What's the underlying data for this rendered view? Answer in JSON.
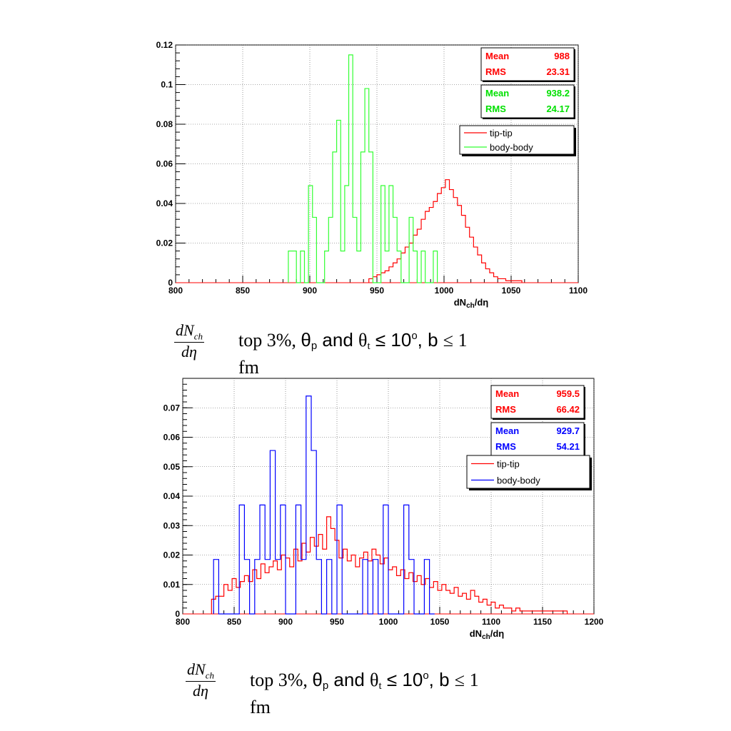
{
  "chart_data": [
    {
      "type": "histogram",
      "xlabel_main": "dN",
      "xlabel_sub": "ch",
      "xlabel_tail": "/dη",
      "xlim": [
        800,
        1100
      ],
      "ylim": [
        0,
        0.12
      ],
      "xticks": [
        "800",
        "850",
        "900",
        "950",
        "1000",
        "1050",
        "1100"
      ],
      "yticks": [
        "0",
        "0.02",
        "0.04",
        "0.06",
        "0.08",
        "0.1",
        "0.12"
      ],
      "grid": true,
      "stats": [
        {
          "color": "#ff0000",
          "mean_label": "Mean",
          "mean": "988",
          "rms_label": "RMS",
          "rms": "23.31"
        },
        {
          "color": "#00e000",
          "mean_label": "Mean",
          "mean": "938.2",
          "rms_label": "RMS",
          "rms": "24.17"
        }
      ],
      "legend": [
        {
          "name": "tip-tip",
          "color": "#ff0000"
        },
        {
          "name": "body-body",
          "color": "#33ff33"
        }
      ],
      "series": [
        {
          "name": "tip-tip",
          "color": "#ff0000",
          "binwidth": 3,
          "bins": [
            [
              944,
              0.002
            ],
            [
              947,
              0.003
            ],
            [
              950,
              0.004
            ],
            [
              953,
              0.005
            ],
            [
              956,
              0.006
            ],
            [
              959,
              0.008
            ],
            [
              962,
              0.01
            ],
            [
              965,
              0.012
            ],
            [
              968,
              0.015
            ],
            [
              971,
              0.018
            ],
            [
              974,
              0.02
            ],
            [
              977,
              0.024
            ],
            [
              980,
              0.027
            ],
            [
              983,
              0.032
            ],
            [
              986,
              0.036
            ],
            [
              989,
              0.038
            ],
            [
              992,
              0.041
            ],
            [
              995,
              0.045
            ],
            [
              998,
              0.048
            ],
            [
              1001,
              0.052
            ],
            [
              1004,
              0.047
            ],
            [
              1007,
              0.043
            ],
            [
              1010,
              0.039
            ],
            [
              1013,
              0.034
            ],
            [
              1016,
              0.028
            ],
            [
              1019,
              0.023
            ],
            [
              1022,
              0.018
            ],
            [
              1025,
              0.014
            ],
            [
              1028,
              0.01
            ],
            [
              1031,
              0.007
            ],
            [
              1034,
              0.005
            ],
            [
              1037,
              0.003
            ],
            [
              1040,
              0.002
            ],
            [
              1043,
              0.002
            ],
            [
              1046,
              0.001
            ],
            [
              1050,
              0.001
            ],
            [
              1055,
              0.001
            ]
          ]
        },
        {
          "name": "body-body",
          "color": "#33ff33",
          "binwidth": 3,
          "bins": [
            [
              884,
              0.016
            ],
            [
              887,
              0.016
            ],
            [
              890,
              0.0
            ],
            [
              893,
              0.016
            ],
            [
              896,
              0.0
            ],
            [
              899,
              0.049
            ],
            [
              902,
              0.033
            ],
            [
              905,
              0.0
            ],
            [
              908,
              0.0
            ],
            [
              911,
              0.016
            ],
            [
              914,
              0.033
            ],
            [
              917,
              0.066
            ],
            [
              920,
              0.082
            ],
            [
              923,
              0.016
            ],
            [
              926,
              0.049
            ],
            [
              929,
              0.115
            ],
            [
              932,
              0.033
            ],
            [
              935,
              0.016
            ],
            [
              938,
              0.066
            ],
            [
              941,
              0.098
            ],
            [
              944,
              0.066
            ],
            [
              947,
              0.0
            ],
            [
              950,
              0.0
            ],
            [
              953,
              0.049
            ],
            [
              956,
              0.016
            ],
            [
              959,
              0.049
            ],
            [
              962,
              0.033
            ],
            [
              965,
              0.016
            ],
            [
              968,
              0.0
            ],
            [
              971,
              0.0
            ],
            [
              974,
              0.033
            ],
            [
              977,
              0.016
            ],
            [
              980,
              0.0
            ],
            [
              983,
              0.016
            ],
            [
              986,
              0.0
            ],
            [
              989,
              0.0
            ],
            [
              992,
              0.016
            ]
          ]
        }
      ]
    },
    {
      "type": "histogram",
      "xlabel_main": "dN",
      "xlabel_sub": "ch",
      "xlabel_tail": "/dη",
      "xlim": [
        800,
        1200
      ],
      "ylim": [
        0,
        0.08
      ],
      "xticks": [
        "800",
        "850",
        "900",
        "950",
        "1000",
        "1050",
        "1100",
        "1150",
        "1200"
      ],
      "yticks": [
        "0",
        "0.01",
        "0.02",
        "0.03",
        "0.04",
        "0.05",
        "0.06",
        "0.07"
      ],
      "grid": true,
      "stats": [
        {
          "color": "#ff0000",
          "mean_label": "Mean",
          "mean": "959.5",
          "rms_label": "RMS",
          "rms": "66.42"
        },
        {
          "color": "#0000ff",
          "mean_label": "Mean",
          "mean": "929.7",
          "rms_label": "RMS",
          "rms": "54.21"
        }
      ],
      "legend": [
        {
          "name": "tip-tip",
          "color": "#ff0000"
        },
        {
          "name": "body-body",
          "color": "#0000ff"
        }
      ],
      "series": [
        {
          "name": "tip-tip",
          "color": "#ff0000",
          "binwidth": 4,
          "bins": [
            [
              828,
              0.005
            ],
            [
              832,
              0.006
            ],
            [
              836,
              0.006
            ],
            [
              840,
              0.01
            ],
            [
              844,
              0.008
            ],
            [
              848,
              0.012
            ],
            [
              852,
              0.009
            ],
            [
              856,
              0.011
            ],
            [
              860,
              0.013
            ],
            [
              864,
              0.011
            ],
            [
              868,
              0.015
            ],
            [
              872,
              0.012
            ],
            [
              876,
              0.017
            ],
            [
              880,
              0.014
            ],
            [
              884,
              0.016
            ],
            [
              888,
              0.018
            ],
            [
              892,
              0.015
            ],
            [
              896,
              0.02
            ],
            [
              900,
              0.019
            ],
            [
              904,
              0.016
            ],
            [
              908,
              0.022
            ],
            [
              912,
              0.018
            ],
            [
              916,
              0.024
            ],
            [
              920,
              0.021
            ],
            [
              924,
              0.026
            ],
            [
              928,
              0.023
            ],
            [
              932,
              0.027
            ],
            [
              936,
              0.022
            ],
            [
              940,
              0.033
            ],
            [
              944,
              0.029
            ],
            [
              948,
              0.025
            ],
            [
              952,
              0.019
            ],
            [
              956,
              0.022
            ],
            [
              960,
              0.018
            ],
            [
              964,
              0.02
            ],
            [
              968,
              0.016
            ],
            [
              972,
              0.019
            ],
            [
              976,
              0.021
            ],
            [
              980,
              0.018
            ],
            [
              984,
              0.022
            ],
            [
              988,
              0.02
            ],
            [
              992,
              0.017
            ],
            [
              996,
              0.019
            ],
            [
              1000,
              0.015
            ],
            [
              1004,
              0.016
            ],
            [
              1008,
              0.013
            ],
            [
              1012,
              0.015
            ],
            [
              1016,
              0.012
            ],
            [
              1020,
              0.014
            ],
            [
              1024,
              0.011
            ],
            [
              1028,
              0.013
            ],
            [
              1032,
              0.01
            ],
            [
              1036,
              0.012
            ],
            [
              1040,
              0.009
            ],
            [
              1044,
              0.011
            ],
            [
              1048,
              0.008
            ],
            [
              1052,
              0.01
            ],
            [
              1056,
              0.008
            ],
            [
              1060,
              0.007
            ],
            [
              1064,
              0.009
            ],
            [
              1068,
              0.006
            ],
            [
              1072,
              0.007
            ],
            [
              1076,
              0.005
            ],
            [
              1080,
              0.008
            ],
            [
              1084,
              0.006
            ],
            [
              1088,
              0.004
            ],
            [
              1092,
              0.005
            ],
            [
              1096,
              0.003
            ],
            [
              1100,
              0.004
            ],
            [
              1104,
              0.002
            ],
            [
              1108,
              0.003
            ],
            [
              1112,
              0.002
            ],
            [
              1116,
              0.002
            ],
            [
              1120,
              0.001
            ],
            [
              1124,
              0.002
            ],
            [
              1128,
              0.001
            ],
            [
              1132,
              0.001
            ],
            [
              1140,
              0.001
            ],
            [
              1150,
              0.001
            ],
            [
              1160,
              0.001
            ],
            [
              1170,
              0.001
            ]
          ]
        },
        {
          "name": "body-body",
          "color": "#0000ff",
          "binwidth": 5,
          "bins": [
            [
              830,
              0.0185
            ],
            [
              835,
              0.0
            ],
            [
              840,
              0.0
            ],
            [
              845,
              0.0
            ],
            [
              850,
              0.0
            ],
            [
              855,
              0.037
            ],
            [
              860,
              0.0185
            ],
            [
              865,
              0.0
            ],
            [
              870,
              0.0185
            ],
            [
              875,
              0.037
            ],
            [
              880,
              0.0185
            ],
            [
              885,
              0.0555
            ],
            [
              890,
              0.0185
            ],
            [
              895,
              0.037
            ],
            [
              900,
              0.0
            ],
            [
              905,
              0.0
            ],
            [
              910,
              0.037
            ],
            [
              915,
              0.0185
            ],
            [
              920,
              0.074
            ],
            [
              925,
              0.0555
            ],
            [
              930,
              0.0185
            ],
            [
              935,
              0.0
            ],
            [
              940,
              0.0185
            ],
            [
              945,
              0.0
            ],
            [
              950,
              0.037
            ],
            [
              955,
              0.0
            ],
            [
              960,
              0.0
            ],
            [
              965,
              0.0
            ],
            [
              970,
              0.0
            ],
            [
              975,
              0.0185
            ],
            [
              980,
              0.0
            ],
            [
              985,
              0.0185
            ],
            [
              990,
              0.0
            ],
            [
              995,
              0.037
            ],
            [
              1000,
              0.0
            ],
            [
              1005,
              0.0
            ],
            [
              1010,
              0.0
            ],
            [
              1015,
              0.037
            ],
            [
              1020,
              0.0185
            ],
            [
              1025,
              0.0
            ],
            [
              1030,
              0.0
            ],
            [
              1035,
              0.0185
            ],
            [
              1040,
              0.0
            ]
          ]
        }
      ]
    }
  ],
  "captions": [
    {
      "frac_num": "dN",
      "frac_num_sub": "ch",
      "frac_den": "dη",
      "t1": "top 3%, ",
      "theta_p": "θ",
      "sub_p": "p",
      "and": " and ",
      "theta_t": "θ",
      "sub_t": "t",
      "le": " ≤ 10",
      "deg": "o",
      "comma_b": ", b ",
      "le2": "≤ 1",
      "line2": "fm"
    },
    {
      "frac_num": "dN",
      "frac_num_sub": "ch",
      "frac_den": "dη",
      "t1": "top 3%, ",
      "theta_p": "θ",
      "sub_p": "p",
      "and": " and ",
      "theta_t": "θ",
      "sub_t": "t",
      "le": " ≤ 10",
      "deg": "o",
      "comma_b": ", b ",
      "le2": "≤ 1",
      "line2": "fm"
    }
  ]
}
